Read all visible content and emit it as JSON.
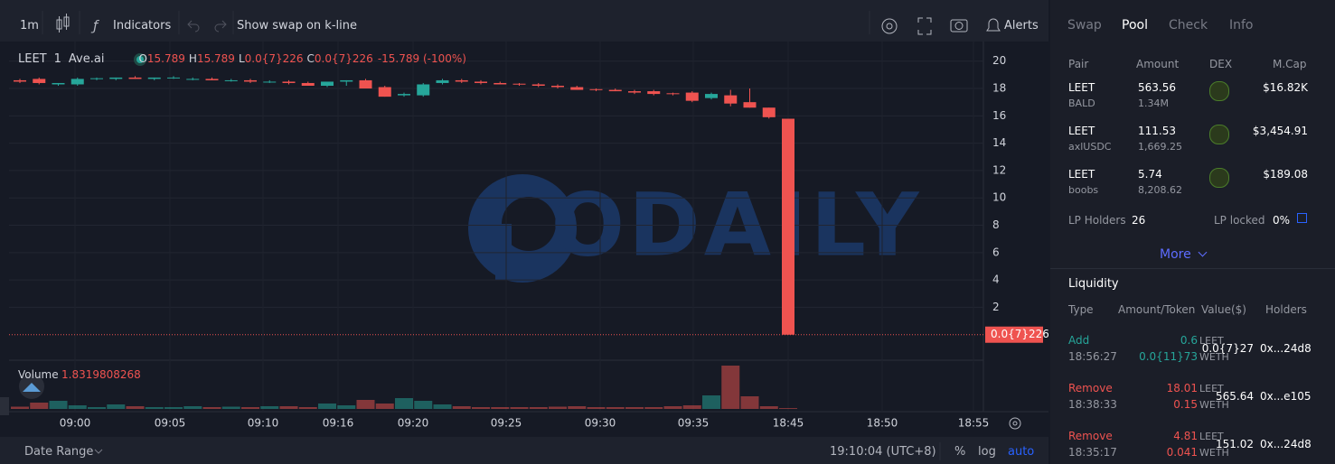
{
  "toolbar": {
    "interval": "1m",
    "indicators": "Indicators",
    "swap_toggle": "Show swap on k-line",
    "alerts": "Alerts"
  },
  "legend": {
    "symbol": "LEET",
    "interval": "1",
    "source": "Ave.ai",
    "o_label": "O",
    "o": "15.789",
    "h_label": "H",
    "h": "15.789",
    "l_label": "L",
    "l": "0.0{7}226",
    "c_label": "C",
    "c": "0.0{7}226",
    "change": "-15.789 (-100%)"
  },
  "watermark": "ODAILY",
  "chart": {
    "type": "candlestick",
    "ylim": [
      -1.8,
      21.5
    ],
    "yticks": [
      2,
      4,
      6,
      8,
      10,
      12,
      14,
      16,
      18,
      20
    ],
    "last_price": {
      "value": 2.26e-08,
      "label": "0.0{7}226"
    },
    "up_color": "#26a69a",
    "down_color": "#ef5350",
    "candles": [
      {
        "open": 18.6,
        "high": 18.7,
        "low": 18.4,
        "close": 18.5
      },
      {
        "open": 18.7,
        "high": 18.8,
        "low": 18.3,
        "close": 18.4
      },
      {
        "open": 18.3,
        "high": 18.4,
        "low": 18.2,
        "close": 18.4
      },
      {
        "open": 18.3,
        "high": 18.8,
        "low": 18.2,
        "close": 18.7
      },
      {
        "open": 18.7,
        "high": 18.8,
        "low": 18.6,
        "close": 18.75
      },
      {
        "open": 18.7,
        "high": 18.8,
        "low": 18.6,
        "close": 18.8
      },
      {
        "open": 18.8,
        "high": 18.9,
        "low": 18.7,
        "close": 18.7
      },
      {
        "open": 18.7,
        "high": 18.8,
        "low": 18.6,
        "close": 18.8
      },
      {
        "open": 18.75,
        "high": 18.9,
        "low": 18.7,
        "close": 18.8
      },
      {
        "open": 18.65,
        "high": 18.8,
        "low": 18.6,
        "close": 18.7
      },
      {
        "open": 18.7,
        "high": 18.8,
        "low": 18.6,
        "close": 18.6
      },
      {
        "open": 18.55,
        "high": 18.7,
        "low": 18.5,
        "close": 18.6
      },
      {
        "open": 18.6,
        "high": 18.7,
        "low": 18.4,
        "close": 18.5
      },
      {
        "open": 18.45,
        "high": 18.6,
        "low": 18.4,
        "close": 18.5
      },
      {
        "open": 18.5,
        "high": 18.6,
        "low": 18.3,
        "close": 18.4
      },
      {
        "open": 18.4,
        "high": 18.5,
        "low": 18.2,
        "close": 18.2
      },
      {
        "open": 18.2,
        "high": 18.5,
        "low": 18.1,
        "close": 18.5
      },
      {
        "open": 18.5,
        "high": 18.6,
        "low": 18.2,
        "close": 18.6
      },
      {
        "open": 18.6,
        "high": 18.7,
        "low": 18.0,
        "close": 18.0
      },
      {
        "open": 18.1,
        "high": 18.2,
        "low": 17.4,
        "close": 17.4
      },
      {
        "open": 17.5,
        "high": 17.7,
        "low": 17.4,
        "close": 17.6
      },
      {
        "open": 17.5,
        "high": 18.4,
        "low": 17.4,
        "close": 18.3
      },
      {
        "open": 18.4,
        "high": 18.7,
        "low": 18.3,
        "close": 18.6
      },
      {
        "open": 18.6,
        "high": 18.7,
        "low": 18.4,
        "close": 18.5
      },
      {
        "open": 18.5,
        "high": 18.6,
        "low": 18.3,
        "close": 18.4
      },
      {
        "open": 18.4,
        "high": 18.5,
        "low": 18.3,
        "close": 18.3
      },
      {
        "open": 18.35,
        "high": 18.4,
        "low": 18.2,
        "close": 18.3
      },
      {
        "open": 18.3,
        "high": 18.4,
        "low": 18.1,
        "close": 18.2
      },
      {
        "open": 18.2,
        "high": 18.3,
        "low": 18.0,
        "close": 18.1
      },
      {
        "open": 18.1,
        "high": 18.2,
        "low": 17.9,
        "close": 17.9
      },
      {
        "open": 17.95,
        "high": 18.0,
        "low": 17.8,
        "close": 17.9
      },
      {
        "open": 17.9,
        "high": 18.0,
        "low": 17.8,
        "close": 17.8
      },
      {
        "open": 17.8,
        "high": 17.9,
        "low": 17.6,
        "close": 17.7
      },
      {
        "open": 17.8,
        "high": 17.9,
        "low": 17.5,
        "close": 17.6
      },
      {
        "open": 17.65,
        "high": 17.7,
        "low": 17.5,
        "close": 17.6
      },
      {
        "open": 17.7,
        "high": 17.8,
        "low": 17.0,
        "close": 17.1
      },
      {
        "open": 17.3,
        "high": 17.7,
        "low": 17.2,
        "close": 17.6
      },
      {
        "open": 17.5,
        "high": 17.9,
        "low": 16.7,
        "close": 16.9
      },
      {
        "open": 17.0,
        "high": 18.0,
        "low": 16.6,
        "close": 16.6
      },
      {
        "open": 16.6,
        "high": 16.6,
        "low": 15.8,
        "close": 15.9
      },
      {
        "open": 15.789,
        "high": 15.789,
        "low": 2.26e-08,
        "close": 2.26e-08
      }
    ],
    "volume_label": "Volume",
    "volume_value": "1.8319808268",
    "volumes": [
      5,
      14,
      18,
      8,
      4,
      10,
      6,
      4,
      4,
      6,
      4,
      5,
      4,
      6,
      6,
      4,
      12,
      8,
      20,
      12,
      24,
      18,
      10,
      6,
      4,
      4,
      4,
      4,
      5,
      6,
      4,
      4,
      4,
      4,
      6,
      8,
      30,
      96,
      28,
      6,
      1.8319808268
    ],
    "time_labels": [
      "09:00",
      "09:05",
      "09:10",
      "09:16",
      "09:20",
      "09:25",
      "09:30",
      "09:35",
      "18:45",
      "18:50",
      "18:55"
    ]
  },
  "footer": {
    "date_range": "Date Range",
    "clock": "19:10:04 (UTC+8)",
    "percent": "%",
    "log": "log",
    "auto": "auto"
  },
  "pool": {
    "tabs": [
      "Swap",
      "Pool",
      "Check",
      "Info"
    ],
    "headers": [
      "Pair",
      "Amount",
      "DEX",
      "M.Cap"
    ],
    "rows": [
      {
        "base": "LEET",
        "quote": "BALD",
        "amount": "563.56",
        "quote_amount": "1.34M",
        "mcap": "$16.82K"
      },
      {
        "base": "LEET",
        "quote": "axlUSDC",
        "amount": "111.53",
        "quote_amount": "1,669.25",
        "mcap": "$3,454.91"
      },
      {
        "base": "LEET",
        "quote": "boobs",
        "amount": "5.74",
        "quote_amount": "8,208.62",
        "mcap": "$189.08"
      }
    ],
    "lp_holders_label": "LP Holders",
    "lp_holders": "26",
    "lp_locked_label": "LP locked",
    "lp_locked": "0%",
    "more": "More"
  },
  "liquidity": {
    "title": "Liquidity",
    "headers": [
      "Type",
      "Amount/Token",
      "Value($)",
      "Holders"
    ],
    "rows": [
      {
        "type": "Add",
        "time": "18:56:27",
        "amount1": "0.6",
        "token1": "LEET",
        "amount2": "0.0{11}73",
        "token2": "WETH",
        "value": "0.0{7}27",
        "holder": "0x...24d8"
      },
      {
        "type": "Remove",
        "time": "18:38:33",
        "amount1": "18.01",
        "token1": "LEET",
        "amount2": "0.15",
        "token2": "WETH",
        "value": "565.64",
        "holder": "0x...e105"
      },
      {
        "type": "Remove",
        "time": "18:35:17",
        "amount1": "4.81",
        "token1": "LEET",
        "amount2": "0.041",
        "token2": "WETH",
        "value": "151.02",
        "holder": "0x...24d8"
      }
    ]
  }
}
